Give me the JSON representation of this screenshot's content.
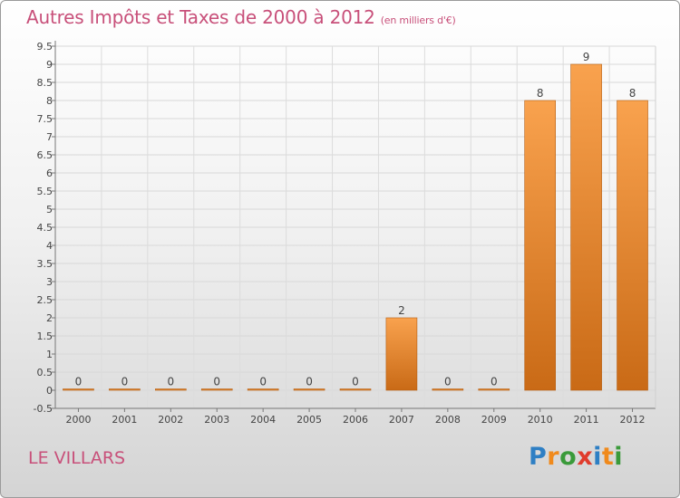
{
  "header": {
    "title": "Autres Impôts et Taxes de 2000 à 2012",
    "unit": "(en milliers d'€)"
  },
  "footer": {
    "commune": "LE VILLARS",
    "logo": {
      "letters": [
        "P",
        "r",
        "o",
        "x",
        "i",
        "t",
        "i"
      ]
    }
  },
  "colors": {
    "accent": "#c8507a",
    "bar_light": "#f9a24e",
    "bar_dark": "#c96a16",
    "logo": [
      "#2e7fc4",
      "#f08a1c",
      "#3a9a3a",
      "#e03c2c",
      "#2e7fc4",
      "#f08a1c",
      "#3a9a3a"
    ]
  },
  "chart_data": {
    "type": "bar",
    "categories": [
      "2000",
      "2001",
      "2002",
      "2003",
      "2004",
      "2005",
      "2006",
      "2007",
      "2008",
      "2009",
      "2010",
      "2011",
      "2012"
    ],
    "values": [
      0,
      0,
      0,
      0,
      0,
      0,
      0,
      2,
      0,
      0,
      8,
      9,
      8
    ],
    "value_labels": [
      "0",
      "0",
      "0",
      "0",
      "0",
      "0",
      "0",
      "2",
      "0",
      "0",
      "8",
      "9",
      "8"
    ],
    "y_ticks": [
      "-0.5",
      "0",
      "0.5",
      "1",
      "1.5",
      "2",
      "2.5",
      "3",
      "3.5",
      "4",
      "4.5",
      "5",
      "5.5",
      "6",
      "6.5",
      "7",
      "7.5",
      "8",
      "8.5",
      "9",
      "9.5"
    ],
    "ylim": [
      -0.5,
      9.5
    ],
    "grid": true
  }
}
